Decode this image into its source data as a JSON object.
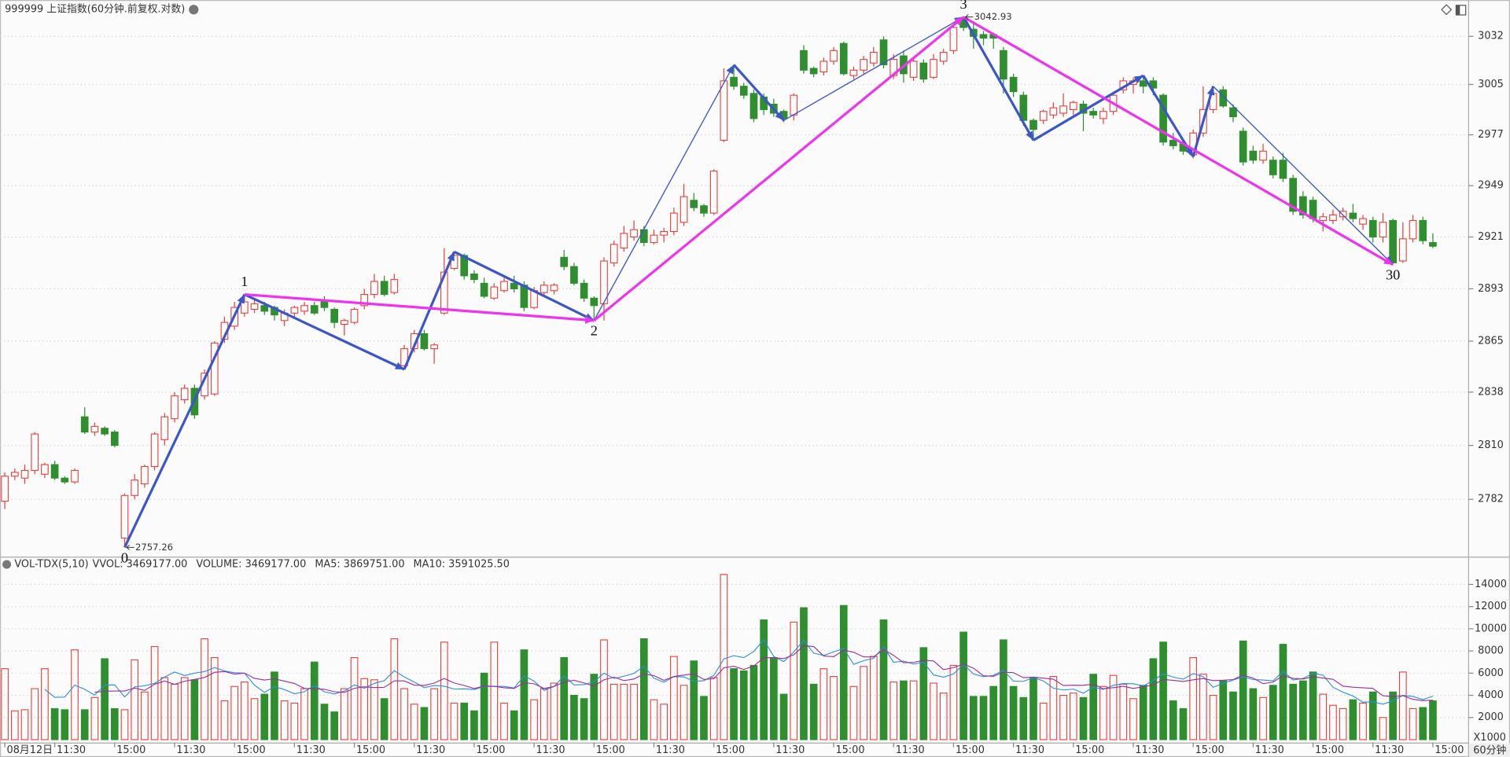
{
  "chart_data": [
    {
      "type": "candlestick",
      "title": "999999 上证指数(60分钟.前复权.对数)",
      "log": true,
      "grid": true,
      "up_color": "#e8403a",
      "down_color": "#2f8f2f",
      "ylim": [
        2753,
        3052
      ],
      "yticks": [
        3032,
        3005,
        2977,
        2949,
        2921,
        2893,
        2865,
        2838,
        2810,
        2782
      ],
      "open": [
        2781,
        2794,
        2793,
        2797,
        2795,
        2800,
        2793,
        2791,
        2825,
        2817,
        2819,
        2817,
        2762,
        2784,
        2790,
        2799,
        2813,
        2824,
        2834,
        2840,
        2836,
        2837,
        2866,
        2873,
        2880,
        2882,
        2884,
        2883,
        2876,
        2880,
        2881,
        2884,
        2887,
        2882,
        2874,
        2875,
        2884,
        2890,
        2897,
        2891,
        2852,
        2861,
        2869,
        2861,
        2880,
        2904,
        2911,
        2901,
        2896,
        2888,
        2892,
        2896,
        2895,
        2883,
        2891,
        2892,
        2910,
        2905,
        2896,
        2888,
        2885,
        2907,
        2915,
        2921,
        2925,
        2918,
        2922,
        2924,
        2929,
        2941,
        2938,
        2934,
        2974,
        3009,
        3004,
        3000,
        2998,
        2994,
        2990,
        2988,
        3024,
        3014,
        3012,
        3018,
        3028,
        3010,
        3013,
        3017,
        3030,
        3010,
        3021,
        3009,
        3017,
        3009,
        3018,
        3024,
        3042,
        3036,
        3033,
        3033,
        3024,
        3009,
        2999,
        2985,
        2985,
        2988,
        2989,
        2991,
        2994,
        2990,
        2986,
        2990,
        3002,
        3005,
        3007,
        3007,
        2999,
        2974,
        2972,
        2966,
        2978,
        2991,
        3002,
        2992,
        2979,
        2968,
        2963,
        2963,
        2963,
        2953,
        2943,
        2941,
        2930,
        2930,
        2932,
        2934,
        2928,
        2930,
        2921,
        2930,
        2908,
        2920,
        2930,
        2918
      ],
      "high": [
        2796,
        2798,
        2800,
        2817,
        2801,
        2802,
        2794,
        2798,
        2830,
        2822,
        2820,
        2818,
        2785,
        2795,
        2800,
        2817,
        2827,
        2838,
        2842,
        2842,
        2850,
        2865,
        2878,
        2886,
        2890,
        2887,
        2886,
        2884,
        2882,
        2884,
        2886,
        2886,
        2889,
        2883,
        2877,
        2883,
        2893,
        2901,
        2900,
        2901,
        2863,
        2871,
        2871,
        2864,
        2915,
        2913,
        2912,
        2903,
        2899,
        2896,
        2899,
        2900,
        2897,
        2894,
        2897,
        2896,
        2914,
        2907,
        2898,
        2889,
        2910,
        2919,
        2927,
        2930,
        2927,
        2925,
        2926,
        2937,
        2950,
        2945,
        2939,
        2958,
        3014,
        3016,
        3006,
        3002,
        3000,
        2997,
        2991,
        3000,
        3027,
        3015,
        3020,
        3026,
        3029,
        3015,
        3021,
        3026,
        3032,
        3022,
        3024,
        3020,
        3019,
        3022,
        3025,
        3039,
        3042.93,
        3040,
        3035,
        3034,
        3026,
        3011,
        3001,
        2986,
        2991,
        2995,
        3000,
        2996,
        2996,
        2992,
        2992,
        3001,
        3009,
        3009,
        3010,
        3009,
        3000,
        2978,
        2974,
        2980,
        3004,
        3004,
        3004,
        2994,
        2981,
        2971,
        2972,
        2965,
        2967,
        2955,
        2946,
        2943,
        2934,
        2936,
        2937,
        2939,
        2933,
        2932,
        2934,
        2931,
        2929,
        2933,
        2932,
        2923
      ],
      "low": [
        2777,
        2792,
        2790,
        2795,
        2793,
        2792,
        2790,
        2790,
        2816,
        2815,
        2815,
        2809,
        2757.26,
        2782,
        2788,
        2797,
        2810,
        2822,
        2832,
        2824,
        2834,
        2836,
        2864,
        2871,
        2878,
        2880,
        2879,
        2876,
        2873,
        2878,
        2879,
        2879,
        2881,
        2872,
        2868,
        2874,
        2882,
        2888,
        2889,
        2890,
        2850,
        2859,
        2860,
        2853,
        2879,
        2903,
        2898,
        2896,
        2888,
        2887,
        2891,
        2891,
        2881,
        2882,
        2889,
        2890,
        2903,
        2895,
        2886,
        2876,
        2876,
        2905,
        2913,
        2919,
        2916,
        2917,
        2918,
        2922,
        2927,
        2935,
        2932,
        2933,
        2973,
        3002,
        2997,
        2984,
        2988,
        2987,
        2984,
        2985,
        3011,
        3009,
        3010,
        3016,
        3010,
        3008,
        3011,
        3015,
        3014,
        3008,
        3006,
        3007,
        3006,
        3008,
        3016,
        3022,
        3035,
        3025,
        3027,
        3025,
        3000,
        2998,
        2982,
        2974,
        2983,
        2986,
        2987,
        2988,
        2979,
        2986,
        2983,
        2988,
        3000,
        3000,
        3000,
        2999,
        2971,
        2969,
        2966,
        2964,
        2976,
        2989,
        2992,
        2984,
        2960,
        2961,
        2961,
        2953,
        2951,
        2933,
        2931,
        2929,
        2924,
        2928,
        2930,
        2929,
        2925,
        2918,
        2918,
        2906,
        2907,
        2918,
        2917,
        2915
      ],
      "close": [
        2794,
        2796,
        2797,
        2816,
        2800,
        2793,
        2791,
        2797,
        2817,
        2820,
        2816,
        2810,
        2784,
        2792,
        2799,
        2816,
        2825,
        2836,
        2840,
        2826,
        2848,
        2864,
        2875,
        2883,
        2886,
        2885,
        2881,
        2879,
        2880,
        2883,
        2884,
        2880,
        2883,
        2875,
        2876,
        2882,
        2890,
        2897,
        2890,
        2898,
        2861,
        2869,
        2861,
        2863,
        2902,
        2911,
        2900,
        2898,
        2889,
        2894,
        2897,
        2893,
        2883,
        2892,
        2895,
        2895,
        2905,
        2896,
        2888,
        2884,
        2908,
        2917,
        2923,
        2925,
        2918,
        2922,
        2924,
        2934,
        2943,
        2937,
        2934,
        2957,
        3007,
        3004,
        2999,
        2986,
        2991,
        2989,
        2986,
        2999,
        3013,
        3011,
        3018,
        3024,
        3011,
        3013,
        3019,
        3023,
        3016,
        3019,
        3011,
        3018,
        3008,
        3019,
        3023,
        3037,
        3037,
        3032,
        3031,
        3031,
        3008,
        3001,
        2985,
        2980,
        2990,
        2992,
        2993,
        2995,
        2989,
        2988,
        2990,
        2999,
        3007,
        3007,
        3004,
        3003,
        2973,
        2971,
        2968,
        2978,
        2991,
        3000,
        2993,
        2987,
        2962,
        2963,
        2968,
        2955,
        2953,
        2935,
        2933,
        2931,
        2932,
        2933,
        2935,
        2931,
        2931,
        2921,
        2929,
        2907,
        2920,
        2930,
        2919,
        2916
      ],
      "waves": [
        {
          "from": [
            12,
            2757.26
          ],
          "to": [
            24,
            2890
          ],
          "color": "#3a56c8",
          "style": "bold"
        },
        {
          "from": [
            24,
            2890
          ],
          "to": [
            40,
            2850
          ],
          "color": "#3a56c8",
          "style": "bold"
        },
        {
          "from": [
            40,
            2850
          ],
          "to": [
            45,
            2913
          ],
          "color": "#3a56c8",
          "style": "bold"
        },
        {
          "from": [
            45,
            2913
          ],
          "to": [
            59,
            2876
          ],
          "color": "#3a56c8",
          "style": "bold"
        },
        {
          "from": [
            59,
            2876
          ],
          "to": [
            73,
            3016
          ],
          "color": "#3a56c8",
          "style": "thin"
        },
        {
          "from": [
            73,
            3016
          ],
          "to": [
            78,
            2985
          ],
          "color": "#3a56c8",
          "style": "bold"
        },
        {
          "from": [
            78,
            2985
          ],
          "to": [
            96,
            3042.93
          ],
          "color": "#3a56c8",
          "style": "thin"
        },
        {
          "from": [
            96,
            3042.93
          ],
          "to": [
            103,
            2974
          ],
          "color": "#3a56c8",
          "style": "bold"
        },
        {
          "from": [
            103,
            2974
          ],
          "to": [
            114,
            3010
          ],
          "color": "#3a56c8",
          "style": "bold"
        },
        {
          "from": [
            114,
            3010
          ],
          "to": [
            119,
            2965
          ],
          "color": "#3a56c8",
          "style": "bold"
        },
        {
          "from": [
            119,
            2965
          ],
          "to": [
            121,
            3004
          ],
          "color": "#3a56c8",
          "style": "bold"
        },
        {
          "from": [
            121,
            3004
          ],
          "to": [
            139,
            2906
          ],
          "color": "#3a56c8",
          "style": "thin"
        },
        {
          "from": [
            24,
            2890
          ],
          "to": [
            59,
            2876
          ],
          "color": "#ee33ee",
          "style": "bold"
        },
        {
          "from": [
            59,
            2876
          ],
          "to": [
            96,
            3042.93
          ],
          "color": "#ee33ee",
          "style": "bold"
        },
        {
          "from": [
            96,
            3042.93
          ],
          "to": [
            139,
            2906
          ],
          "color": "#ee33ee",
          "style": "bold"
        }
      ],
      "wave_labels": [
        {
          "text": "0",
          "bar": 12,
          "price": 2757.26,
          "pos": "below"
        },
        {
          "text": "1",
          "bar": 24,
          "price": 2890,
          "pos": "above"
        },
        {
          "text": "2",
          "bar": 59,
          "price": 2876,
          "pos": "below"
        },
        {
          "text": "3",
          "bar": 96,
          "price": 3042.93,
          "pos": "above"
        },
        {
          "text": "30",
          "bar": 139,
          "price": 2906,
          "pos": "below"
        }
      ]
    },
    {
      "type": "volume",
      "indicator": "VOL-TDX(5,10)",
      "readouts": [
        {
          "text": "VVOL: 3469177.00",
          "color": "#333333"
        },
        {
          "text": "VOLUME: 3469177.00",
          "color": "#1a8fd6"
        },
        {
          "text": "MA5: 3869751.00",
          "color": "#1a8fd6"
        },
        {
          "text": "MA10: 3591025.50",
          "color": "#9b2c9b"
        }
      ],
      "ma": [
        {
          "period": 5,
          "color": "#2a8ee0"
        },
        {
          "period": 10,
          "color": "#9b2c9b"
        }
      ],
      "unit_label": "X1000",
      "x_unit": "60分钟",
      "grid": true,
      "ylim": [
        0,
        15200
      ],
      "yticks": [
        2000,
        4000,
        6000,
        8000,
        10000,
        12000,
        14000
      ],
      "categories": [
        "08月12日",
        null,
        null,
        null,
        null,
        "11:30",
        null,
        null,
        null,
        null,
        null,
        "15:00",
        null,
        null,
        null,
        null,
        null,
        "11:30",
        null,
        null,
        null,
        null,
        null,
        "15:00",
        null,
        null,
        null,
        null,
        null,
        "11:30",
        null,
        null,
        null,
        null,
        null,
        "15:00",
        null,
        null,
        null,
        null,
        null,
        "11:30",
        null,
        null,
        null,
        null,
        null,
        "15:00",
        null,
        null,
        null,
        null,
        null,
        "11:30",
        null,
        null,
        null,
        null,
        null,
        "15:00",
        null,
        null,
        null,
        null,
        null,
        "11:30",
        null,
        null,
        null,
        null,
        null,
        "15:00",
        null,
        null,
        null,
        null,
        null,
        "11:30",
        null,
        null,
        null,
        null,
        null,
        "15:00",
        null,
        null,
        null,
        null,
        null,
        "11:30",
        null,
        null,
        null,
        null,
        null,
        "15:00",
        null,
        null,
        null,
        null,
        null,
        "11:30",
        null,
        null,
        null,
        null,
        null,
        "15:00",
        null,
        null,
        null,
        null,
        null,
        "11:30",
        null,
        null,
        null,
        null,
        null,
        "15:00",
        null,
        null,
        null,
        null,
        null,
        "11:30",
        null,
        null,
        null,
        null,
        null,
        "15:00",
        null,
        null,
        null,
        null,
        null,
        "11:30",
        null,
        null,
        null,
        null,
        null,
        "15:00"
      ],
      "values": [
        6400,
        2600,
        2700,
        4600,
        6400,
        2800,
        2700,
        8100,
        2700,
        3800,
        7300,
        2800,
        2700,
        7200,
        4300,
        8400,
        5600,
        5000,
        5600,
        5400,
        9100,
        7400,
        3500,
        4800,
        5200,
        3700,
        4100,
        6100,
        3500,
        3300,
        4600,
        7000,
        3200,
        2500,
        4600,
        7400,
        5500,
        5400,
        3700,
        9100,
        4600,
        3200,
        2900,
        4600,
        8800,
        3300,
        3300,
        2600,
        6000,
        8800,
        3300,
        2600,
        8100,
        3600,
        4600,
        5100,
        7400,
        4000,
        3700,
        5900,
        9000,
        5000,
        5000,
        5000,
        9100,
        3600,
        3200,
        7500,
        4900,
        7100,
        3900,
        5600,
        14900,
        6400,
        6200,
        6700,
        10800,
        7400,
        4100,
        10600,
        11900,
        5000,
        6400,
        5700,
        12100,
        4800,
        6600,
        7500,
        10800,
        5200,
        5300,
        5300,
        8300,
        5100,
        4200,
        6700,
        9700,
        3900,
        3900,
        4800,
        9000,
        4800,
        3800,
        5600,
        3300,
        5700,
        4000,
        4200,
        3800,
        5900,
        4800,
        5800,
        5000,
        3700,
        4900,
        7300,
        8800,
        3500,
        2800,
        7400,
        5900,
        4000,
        5300,
        4300,
        8900,
        4600,
        3800,
        4900,
        8600,
        5000,
        5300,
        6100,
        4100,
        3100,
        2800,
        3600,
        3300,
        4300,
        2000,
        4300,
        6100,
        2800,
        2900,
        3500
      ]
    }
  ]
}
